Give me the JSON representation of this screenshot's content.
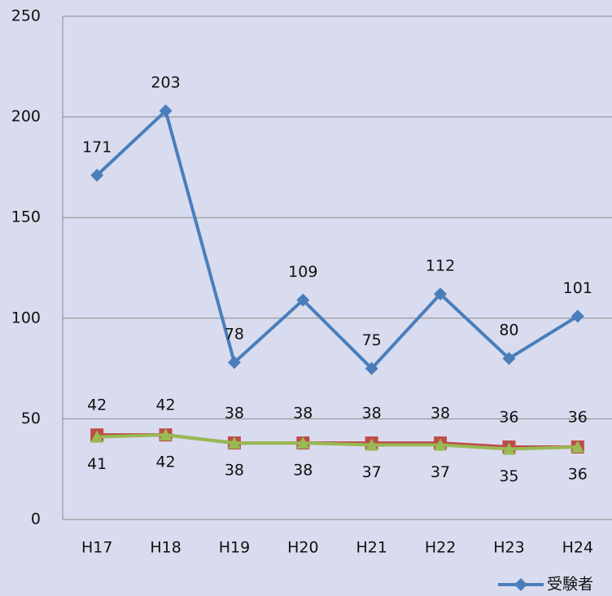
{
  "chart_data": {
    "type": "line",
    "categories": [
      "H17",
      "H18",
      "H19",
      "H20",
      "H21",
      "H22",
      "H23",
      "H24"
    ],
    "series": [
      {
        "name": "受験者",
        "color": "#4a7ebb",
        "marker": "diamond",
        "values": [
          171,
          203,
          78,
          109,
          75,
          112,
          80,
          101
        ]
      },
      {
        "color": "#be4b48",
        "marker": "square",
        "values": [
          42,
          42,
          38,
          38,
          38,
          38,
          36,
          36
        ]
      },
      {
        "color": "#98b954",
        "marker": "triangle",
        "values": [
          41,
          42,
          38,
          38,
          37,
          37,
          35,
          36
        ]
      }
    ],
    "ylim": [
      0,
      250
    ],
    "yticks": [
      0,
      50,
      100,
      150,
      200,
      250
    ],
    "grid": true,
    "legend": "bottom-right"
  }
}
